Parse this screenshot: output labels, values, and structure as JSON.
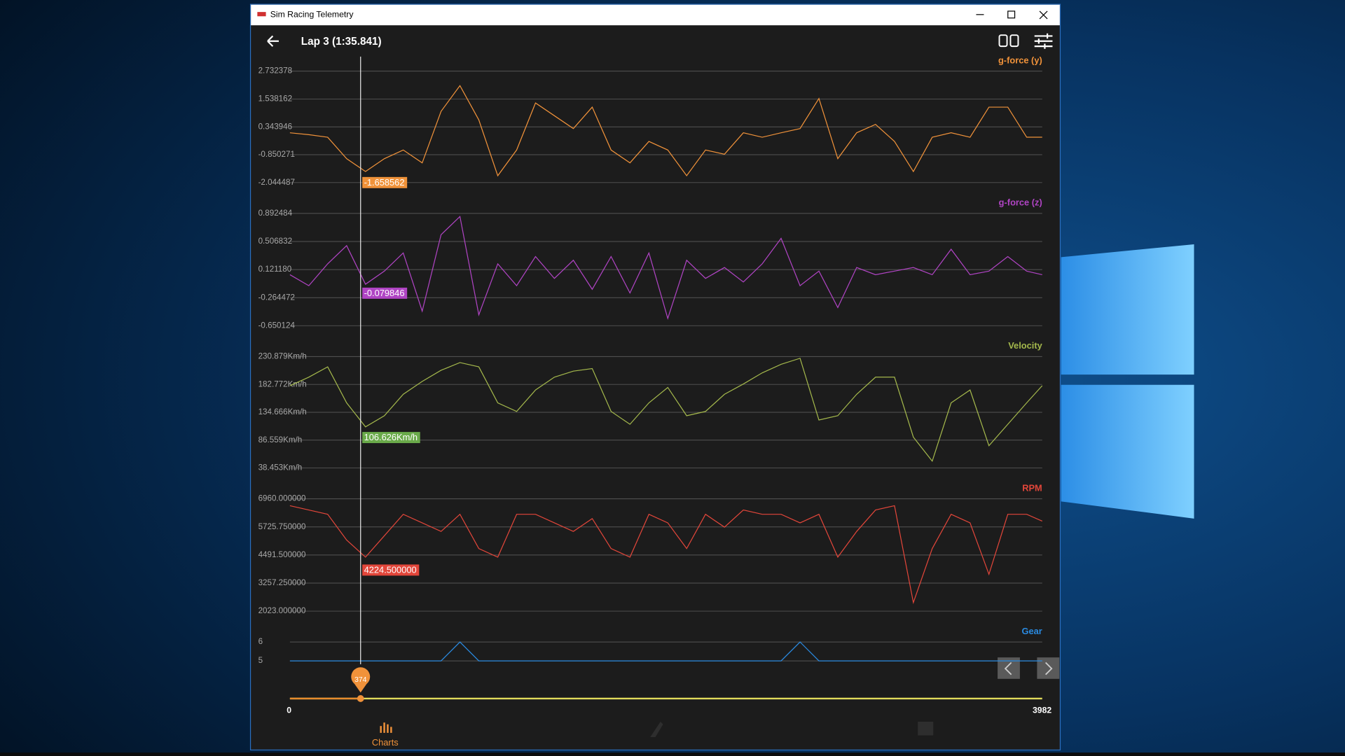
{
  "window": {
    "title": "Sim Racing Telemetry"
  },
  "header": {
    "title": "Lap 3 (1:35.841)"
  },
  "chart_data": [
    {
      "type": "line",
      "title": "g-force (y)",
      "color": "#f0923a",
      "x": [
        0,
        100,
        200,
        300,
        400,
        500,
        600,
        700,
        800,
        900,
        1000,
        1100,
        1200,
        1300,
        1400,
        1500,
        1600,
        1700,
        1800,
        1900,
        2000,
        2100,
        2200,
        2300,
        2400,
        2500,
        2600,
        2700,
        2800,
        2900,
        3000,
        3100,
        3200,
        3300,
        3400,
        3500,
        3600,
        3700,
        3800,
        3900,
        3982
      ],
      "values": [
        0.09,
        0.01,
        -0.1,
        -1.02,
        -1.57,
        -1.02,
        -0.65,
        -1.2,
        1.01,
        2.11,
        0.64,
        -1.75,
        -0.65,
        1.37,
        0.82,
        0.27,
        1.19,
        -0.65,
        -1.2,
        -0.28,
        -0.65,
        -1.75,
        -0.65,
        -0.83,
        0.09,
        -0.1,
        0.09,
        0.27,
        1.56,
        -1.02,
        0.09,
        0.45,
        -0.28,
        -1.57,
        -0.1,
        0.09,
        -0.1,
        1.19,
        1.19,
        -0.1,
        -0.1
      ],
      "xlim": [
        0,
        3982
      ],
      "ylim": [
        -2.044487,
        2.732378
      ],
      "yticks": [
        2.732378,
        1.538162,
        0.343946,
        -0.850271,
        -2.044487
      ],
      "cursor": {
        "value": -1.658562
      }
    },
    {
      "type": "line",
      "title": "g-force (z)",
      "color": "#b044c4",
      "x": [
        0,
        100,
        200,
        300,
        400,
        500,
        600,
        700,
        800,
        900,
        1000,
        1100,
        1200,
        1300,
        1400,
        1500,
        1600,
        1700,
        1800,
        1900,
        2000,
        2100,
        2200,
        2300,
        2400,
        2500,
        2600,
        2700,
        2800,
        2900,
        3000,
        3100,
        3200,
        3300,
        3400,
        3500,
        3600,
        3700,
        3800,
        3900,
        3982
      ],
      "values": [
        0.05,
        -0.1,
        0.2,
        0.45,
        -0.08,
        0.1,
        0.35,
        -0.45,
        0.6,
        0.85,
        -0.5,
        0.2,
        -0.1,
        0.3,
        0.0,
        0.25,
        -0.15,
        0.3,
        -0.2,
        0.35,
        -0.55,
        0.25,
        0.0,
        0.15,
        -0.05,
        0.2,
        0.55,
        -0.1,
        0.1,
        -0.4,
        0.15,
        0.05,
        0.1,
        0.15,
        0.05,
        0.4,
        0.05,
        0.1,
        0.3,
        0.1,
        0.05
      ],
      "xlim": [
        0,
        3982
      ],
      "ylim": [
        -0.650124,
        0.892484
      ],
      "yticks": [
        0.892484,
        0.506832,
        {
          "value": 0.12118,
          "label": "0.121180"
        },
        -0.264472,
        -0.650124
      ],
      "cursor": {
        "value": -0.079846
      }
    },
    {
      "type": "line",
      "title": "Velocity",
      "color": "#a4b84c",
      "label_color": "#6aaa4a",
      "x": [
        0,
        100,
        200,
        300,
        400,
        500,
        600,
        700,
        800,
        900,
        1000,
        1100,
        1200,
        1300,
        1400,
        1500,
        1600,
        1700,
        1800,
        1900,
        2000,
        2100,
        2200,
        2300,
        2400,
        2500,
        2600,
        2700,
        2800,
        2900,
        3000,
        3100,
        3200,
        3300,
        3400,
        3500,
        3600,
        3700,
        3800,
        3900,
        3982
      ],
      "values": [
        180.5,
        195.4,
        213.1,
        151.0,
        109.5,
        128.7,
        165.8,
        188.0,
        207.2,
        220.5,
        213.1,
        151.0,
        136.1,
        173.1,
        195.4,
        205.7,
        210.1,
        136.1,
        113.9,
        151.0,
        177.6,
        128.7,
        136.1,
        165.8,
        183.5,
        202.8,
        217.6,
        227.9,
        121.3,
        128.7,
        165.8,
        195.4,
        195.4,
        91.7,
        50.3,
        151.0,
        173.1,
        76.9,
        113.9,
        151.0,
        180.5
      ],
      "xlim": [
        0,
        3982
      ],
      "ylim": [
        38.453,
        230.879
      ],
      "yticks": [
        {
          "value": 230.879,
          "label": "230.879Km/h"
        },
        {
          "value": 182.772,
          "label": "182.772Km/h"
        },
        {
          "value": 134.666,
          "label": "134.666Km/h"
        },
        {
          "value": 86.559,
          "label": "86.559Km/h"
        },
        {
          "value": 38.453,
          "label": "38.453Km/h"
        }
      ],
      "cursor": {
        "value": 106.626,
        "label": "106.626Km/h"
      }
    },
    {
      "type": "line",
      "title": "RPM",
      "color": "#e2463a",
      "x": [
        0,
        100,
        200,
        300,
        400,
        500,
        600,
        700,
        800,
        900,
        1000,
        1100,
        1200,
        1300,
        1400,
        1500,
        1600,
        1700,
        1800,
        1900,
        2000,
        2100,
        2200,
        2300,
        2400,
        2500,
        2600,
        2700,
        2800,
        2900,
        3000,
        3100,
        3200,
        3300,
        3400,
        3500,
        3600,
        3700,
        3800,
        3900,
        3982
      ],
      "values": [
        6658,
        6470,
        6282,
        5151,
        4397,
        5340,
        6282,
        5905,
        5528,
        6282,
        4774,
        4397,
        6282,
        6282,
        5905,
        5528,
        6093,
        4774,
        4397,
        6282,
        5905,
        4774,
        6282,
        5716,
        6470,
        6282,
        6282,
        5905,
        6282,
        4397,
        5528,
        6470,
        6658,
        2400,
        4774,
        6282,
        5905,
        3643,
        6282,
        6282,
        5980
      ],
      "xlim": [
        0,
        3982
      ],
      "ylim": [
        2023,
        6960
      ],
      "yticks": [
        {
          "value": 6960,
          "label": "6960.000000"
        },
        {
          "value": 5725.75,
          "label": "5725.750000"
        },
        {
          "value": 4491.5,
          "label": "4491.500000"
        },
        {
          "value": 3257.25,
          "label": "3257.250000"
        },
        {
          "value": 2023,
          "label": "2023.000000"
        }
      ],
      "cursor": {
        "value": 4224.5,
        "label": "4224.500000"
      }
    },
    {
      "type": "line",
      "title": "Gear",
      "color": "#2a8ae0",
      "x": [
        0,
        100,
        200,
        300,
        400,
        500,
        600,
        700,
        800,
        900,
        1000,
        1100,
        1200,
        1300,
        1400,
        1500,
        1600,
        1700,
        1800,
        1900,
        2000,
        2100,
        2200,
        2300,
        2400,
        2500,
        2600,
        2700,
        2800,
        2900,
        3000,
        3100,
        3200,
        3300,
        3400,
        3500,
        3600,
        3700,
        3800,
        3900,
        3982
      ],
      "values": [
        5,
        5,
        5,
        5,
        5,
        5,
        5,
        5,
        5,
        6,
        5,
        5,
        5,
        5,
        5,
        5,
        5,
        5,
        5,
        5,
        5,
        5,
        5,
        5,
        5,
        5,
        5,
        6,
        5,
        5,
        5,
        5,
        5,
        5,
        5,
        5,
        5,
        5,
        5,
        5,
        5
      ],
      "xlim": [
        0,
        3982
      ],
      "ylim": [
        4.8,
        6
      ],
      "yticks": [
        6,
        5
      ]
    }
  ],
  "slider": {
    "min": 0,
    "max": 3982,
    "value": 374
  },
  "nav": {
    "tabs": [
      "Charts"
    ]
  }
}
